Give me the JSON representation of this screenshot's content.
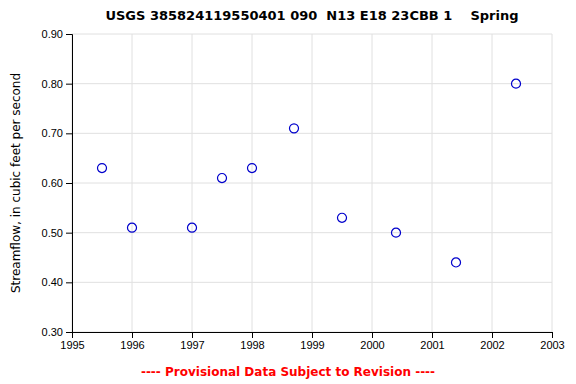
{
  "chart_data": {
    "type": "scatter",
    "title": "USGS 385824119550401 090  N13 E18 23CBB 1    Spring",
    "ylabel": "Streamflow, in cubic feet per second",
    "x": [
      1995.5,
      1996.0,
      1997.0,
      1997.5,
      1998.0,
      1998.7,
      1999.5,
      2000.4,
      2001.4,
      2002.4
    ],
    "values": [
      0.63,
      0.51,
      0.51,
      0.61,
      0.63,
      0.71,
      0.53,
      0.5,
      0.44,
      0.8
    ],
    "xlim": [
      1995,
      2003
    ],
    "ylim": [
      0.3,
      0.9
    ],
    "xticks": [
      1995,
      1996,
      1997,
      1998,
      1999,
      2000,
      2001,
      2002,
      2003
    ],
    "yticks": [
      {
        "value": 0.3,
        "label": "0.30"
      },
      {
        "value": 0.4,
        "label": "0.40"
      },
      {
        "value": 0.5,
        "label": "0.50"
      },
      {
        "value": 0.6,
        "label": "0.60"
      },
      {
        "value": 0.7,
        "label": "0.70"
      },
      {
        "value": 0.8,
        "label": "0.80"
      },
      {
        "value": 0.9,
        "label": "0.90"
      }
    ],
    "color": "#0000cc",
    "marker": "circle",
    "grid": true,
    "annotations": [
      "---- Provisional Data Subject to Revision ----"
    ]
  }
}
